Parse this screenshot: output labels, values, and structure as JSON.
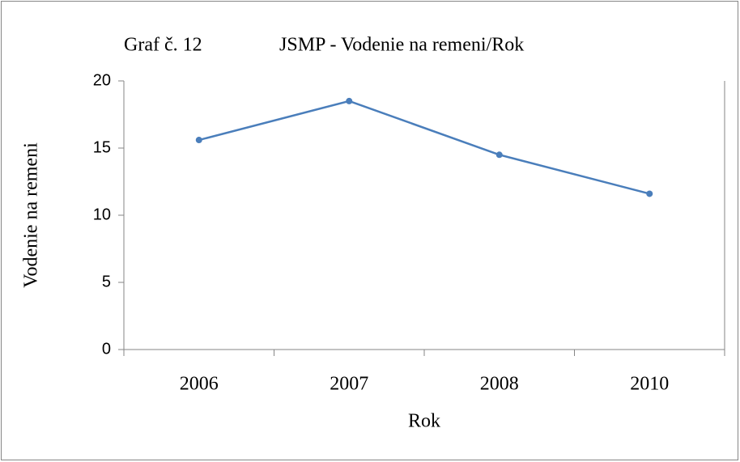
{
  "chart_data": {
    "type": "line",
    "title": [
      "Graf č. 12",
      "JSMP - Vodenie na remeni/Rok"
    ],
    "x_label": "Rok",
    "y_label": "Vodenie na remeni",
    "categories": [
      "2006",
      "2007",
      "2008",
      "2010"
    ],
    "series": [
      {
        "name": "Vodenie na remeni",
        "color": "#4a7ebb",
        "values": [
          15.6,
          18.5,
          14.5,
          11.6
        ]
      }
    ],
    "ylim": [
      0,
      20
    ],
    "yticks": [
      0,
      5,
      10,
      15,
      20
    ],
    "grid": false,
    "legend": false
  }
}
